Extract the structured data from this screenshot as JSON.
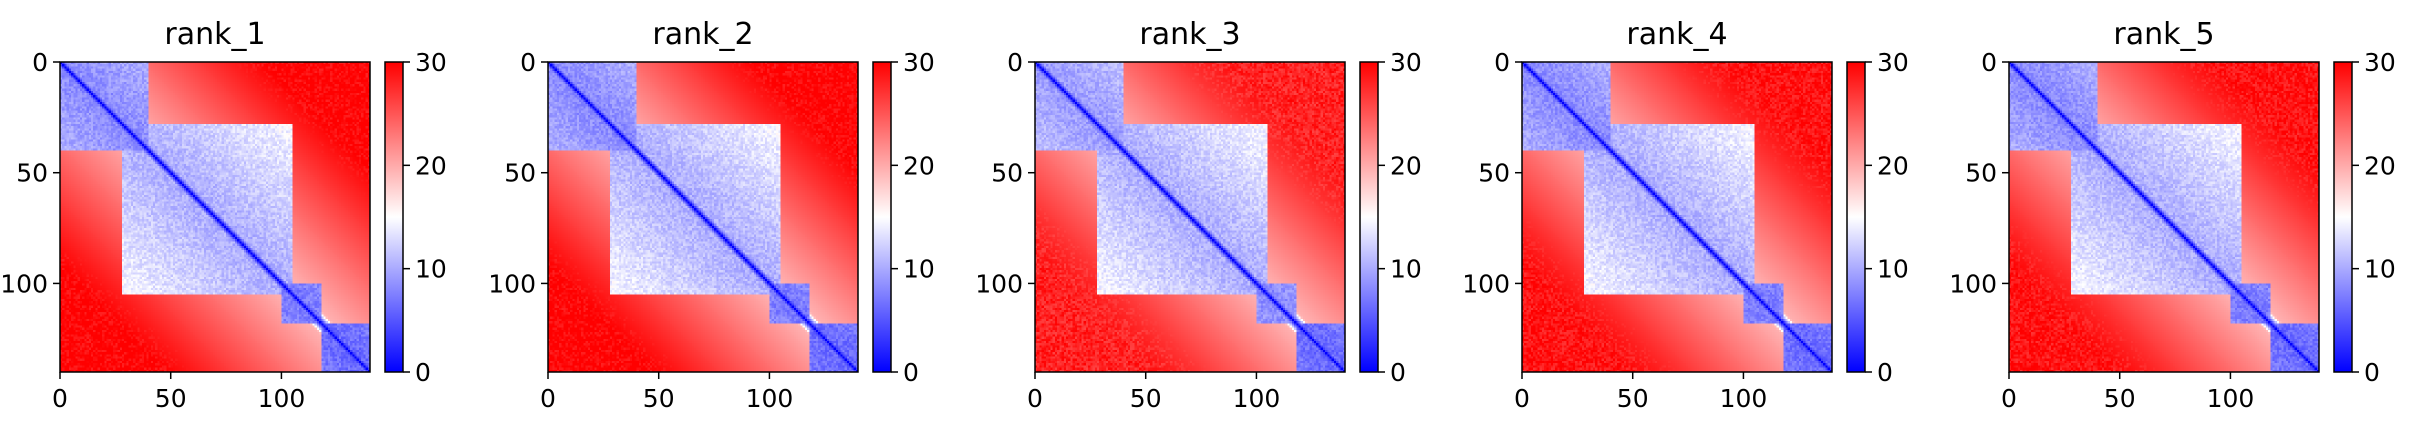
{
  "chart_data": [
    {
      "type": "heatmap",
      "title": "rank_1",
      "colormap": "bwr",
      "vmin": 0,
      "vmax": 30,
      "shape": [
        140,
        140
      ],
      "xticks": [
        0,
        50,
        100
      ],
      "yticks": [
        0,
        50,
        100
      ],
      "colorbar_ticks": [
        0,
        10,
        20,
        30
      ],
      "domain_blocks": [
        {
          "range": [
            0,
            40
          ],
          "distance": 8
        },
        {
          "range": [
            28,
            105
          ],
          "distance": 10
        },
        {
          "range": [
            100,
            118
          ],
          "distance": 7
        },
        {
          "range": [
            118,
            140
          ],
          "distance": 6
        }
      ],
      "background_distance": 30
    },
    {
      "type": "heatmap",
      "title": "rank_2",
      "colormap": "bwr",
      "vmin": 0,
      "vmax": 30,
      "shape": [
        140,
        140
      ],
      "xticks": [
        0,
        50,
        100
      ],
      "yticks": [
        0,
        50,
        100
      ],
      "colorbar_ticks": [
        0,
        10,
        20,
        30
      ],
      "domain_blocks": [
        {
          "range": [
            0,
            40
          ],
          "distance": 8
        },
        {
          "range": [
            28,
            105
          ],
          "distance": 10
        },
        {
          "range": [
            100,
            118
          ],
          "distance": 7
        },
        {
          "range": [
            118,
            140
          ],
          "distance": 6
        }
      ],
      "background_distance": 30
    },
    {
      "type": "heatmap",
      "title": "rank_3",
      "colormap": "bwr",
      "vmin": 0,
      "vmax": 30,
      "shape": [
        140,
        140
      ],
      "xticks": [
        0,
        50,
        100
      ],
      "yticks": [
        0,
        50,
        100
      ],
      "colorbar_ticks": [
        0,
        10,
        20,
        30
      ],
      "domain_blocks": [
        {
          "range": [
            0,
            40
          ],
          "distance": 9
        },
        {
          "range": [
            28,
            105
          ],
          "distance": 10
        },
        {
          "range": [
            100,
            118
          ],
          "distance": 8
        },
        {
          "range": [
            118,
            140
          ],
          "distance": 6
        }
      ],
      "background_distance": 28
    },
    {
      "type": "heatmap",
      "title": "rank_4",
      "colormap": "bwr",
      "vmin": 0,
      "vmax": 30,
      "shape": [
        140,
        140
      ],
      "xticks": [
        0,
        50,
        100
      ],
      "yticks": [
        0,
        50,
        100
      ],
      "colorbar_ticks": [
        0,
        10,
        20,
        30
      ],
      "domain_blocks": [
        {
          "range": [
            0,
            40
          ],
          "distance": 8
        },
        {
          "range": [
            28,
            105
          ],
          "distance": 10
        },
        {
          "range": [
            100,
            118
          ],
          "distance": 7
        },
        {
          "range": [
            118,
            140
          ],
          "distance": 6
        }
      ],
      "background_distance": 29
    },
    {
      "type": "heatmap",
      "title": "rank_5",
      "colormap": "bwr",
      "vmin": 0,
      "vmax": 30,
      "shape": [
        140,
        140
      ],
      "xticks": [
        0,
        50,
        100
      ],
      "yticks": [
        0,
        50,
        100
      ],
      "colorbar_ticks": [
        0,
        10,
        20,
        30
      ],
      "domain_blocks": [
        {
          "range": [
            0,
            40
          ],
          "distance": 8
        },
        {
          "range": [
            28,
            105
          ],
          "distance": 10
        },
        {
          "range": [
            100,
            118
          ],
          "distance": 7
        },
        {
          "range": [
            118,
            140
          ],
          "distance": 6
        }
      ],
      "background_distance": 29
    }
  ]
}
